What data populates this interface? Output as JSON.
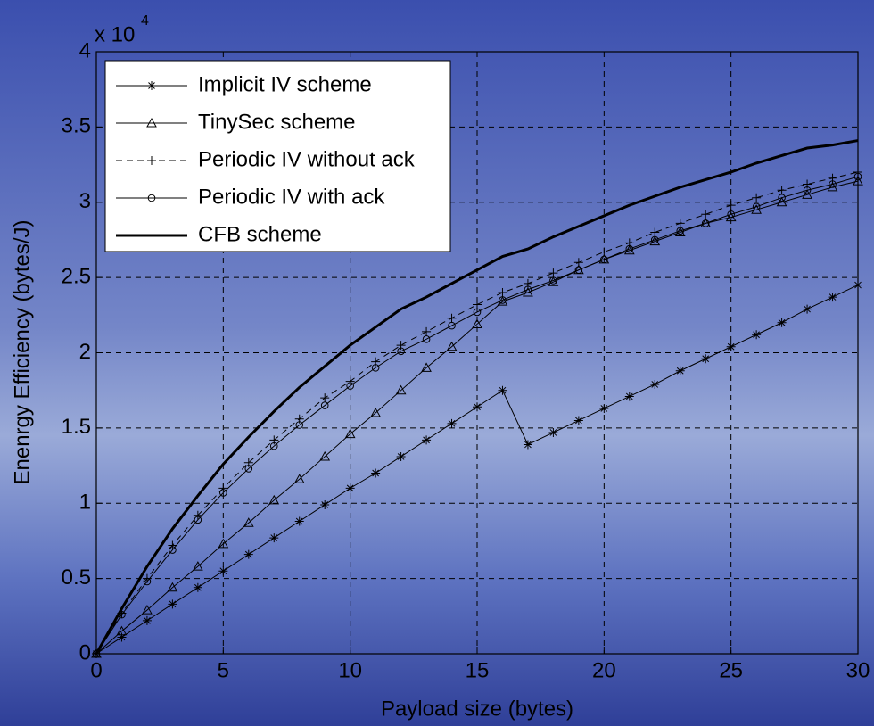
{
  "chart_data": {
    "type": "line",
    "xlabel": "Payload size (bytes)",
    "ylabel": "Enenrgy Efficiency (bytes/J)",
    "y_scale_base": "x 10",
    "y_scale_exponent": "4",
    "x": [
      0,
      1,
      2,
      3,
      4,
      5,
      6,
      7,
      8,
      9,
      10,
      11,
      12,
      13,
      14,
      15,
      16,
      17,
      18,
      19,
      20,
      21,
      22,
      23,
      24,
      25,
      26,
      27,
      28,
      29,
      30
    ],
    "xlim": [
      0,
      30
    ],
    "xticks": [
      0,
      5,
      10,
      15,
      20,
      25,
      30
    ],
    "ylim": [
      0,
      4
    ],
    "yticks": [
      0,
      0.5,
      1,
      1.5,
      2,
      2.5,
      3,
      3.5,
      4
    ],
    "grid": true,
    "legend": "upper-left",
    "series": [
      {
        "name": "Implicit IV scheme",
        "color": "#000000",
        "marker": "star",
        "dash": false,
        "width": 1,
        "values": [
          0,
          0.11,
          0.22,
          0.33,
          0.44,
          0.55,
          0.66,
          0.77,
          0.88,
          0.99,
          1.1,
          1.2,
          1.31,
          1.42,
          1.53,
          1.64,
          1.75,
          1.39,
          1.47,
          1.55,
          1.63,
          1.71,
          1.79,
          1.88,
          1.96,
          2.04,
          2.12,
          2.2,
          2.29,
          2.37,
          2.45
        ]
      },
      {
        "name": "TinySec scheme",
        "color": "#000000",
        "marker": "triangle",
        "dash": false,
        "width": 1,
        "values": [
          0,
          0.15,
          0.29,
          0.44,
          0.58,
          0.73,
          0.87,
          1.02,
          1.16,
          1.31,
          1.46,
          1.6,
          1.75,
          1.9,
          2.04,
          2.19,
          2.34,
          2.4,
          2.47,
          2.55,
          2.62,
          2.68,
          2.74,
          2.8,
          2.86,
          2.9,
          2.95,
          3.0,
          3.05,
          3.1,
          3.14
        ]
      },
      {
        "name": "Periodic IV without ack",
        "color": "#000000",
        "marker": "plus",
        "dash": true,
        "width": 1,
        "values": [
          0,
          0.27,
          0.5,
          0.72,
          0.92,
          1.1,
          1.27,
          1.42,
          1.56,
          1.7,
          1.81,
          1.94,
          2.05,
          2.14,
          2.23,
          2.32,
          2.4,
          2.46,
          2.53,
          2.6,
          2.67,
          2.73,
          2.8,
          2.86,
          2.92,
          2.98,
          3.03,
          3.08,
          3.12,
          3.16,
          3.2
        ]
      },
      {
        "name": "Periodic IV with ack",
        "color": "#000000",
        "marker": "circle",
        "dash": false,
        "width": 1,
        "values": [
          0,
          0.26,
          0.48,
          0.69,
          0.89,
          1.07,
          1.23,
          1.38,
          1.52,
          1.65,
          1.78,
          1.9,
          2.01,
          2.09,
          2.18,
          2.27,
          2.35,
          2.42,
          2.48,
          2.55,
          2.62,
          2.69,
          2.75,
          2.81,
          2.86,
          2.92,
          2.97,
          3.03,
          3.08,
          3.12,
          3.17
        ]
      },
      {
        "name": "CFB scheme",
        "color": "#000000",
        "marker": "none",
        "dash": false,
        "width": 3,
        "values": [
          0,
          0.3,
          0.58,
          0.83,
          1.05,
          1.26,
          1.44,
          1.61,
          1.77,
          1.91,
          2.05,
          2.17,
          2.29,
          2.37,
          2.46,
          2.55,
          2.64,
          2.69,
          2.77,
          2.84,
          2.91,
          2.98,
          3.04,
          3.1,
          3.15,
          3.2,
          3.26,
          3.31,
          3.36,
          3.38,
          3.41
        ]
      }
    ]
  }
}
